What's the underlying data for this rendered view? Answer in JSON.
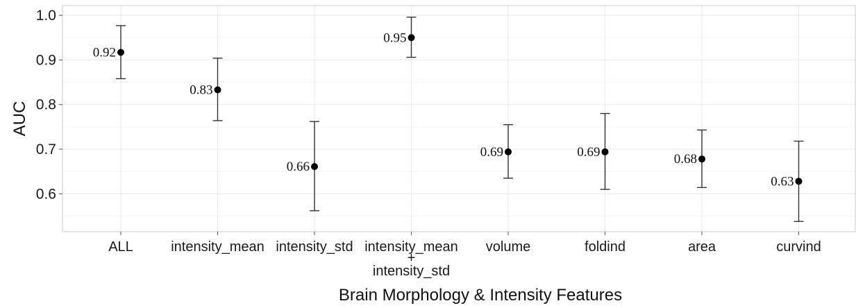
{
  "chart_data": {
    "type": "scatter",
    "title": "",
    "xlabel": "Brain Morphology & Intensity Features",
    "ylabel": "AUC",
    "categories": [
      "ALL",
      "intensity_mean",
      "intensity_std",
      "intensity_mean\n+\nintensity_std",
      "volume",
      "foldind",
      "area",
      "curvind"
    ],
    "values": [
      0.917,
      0.833,
      0.661,
      0.95,
      0.694,
      0.694,
      0.678,
      0.628
    ],
    "labels": [
      "0.92",
      "0.83",
      "0.66",
      "0.95",
      "0.69",
      "0.69",
      "0.68",
      "0.63"
    ],
    "error_low": [
      0.858,
      0.764,
      0.562,
      0.906,
      0.635,
      0.61,
      0.614,
      0.538
    ],
    "error_high": [
      0.977,
      0.904,
      0.762,
      0.996,
      0.755,
      0.78,
      0.743,
      0.718
    ],
    "y_ticks": [
      "0.6",
      "0.7",
      "0.8",
      "0.9",
      "1.0"
    ],
    "ylim": [
      0.515,
      1.022
    ],
    "grid": true,
    "legend": "none",
    "colors": {
      "point": "#000000",
      "errorbar": "#333333",
      "grid_major": "#ebebeb",
      "grid_minor": "#f5f5f5",
      "panel_border": "#c8c8c8"
    }
  }
}
